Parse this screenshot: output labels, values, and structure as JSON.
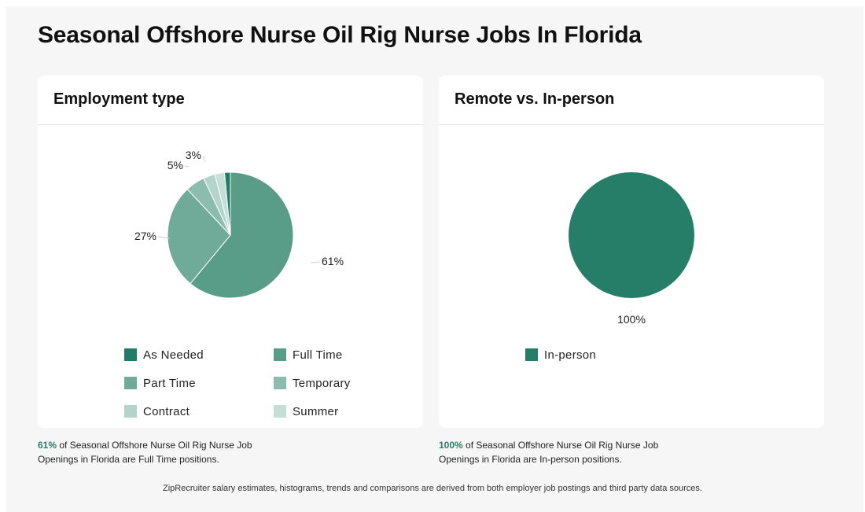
{
  "page": {
    "title": "Seasonal Offshore Nurse Oil Rig Nurse Jobs In Florida"
  },
  "cards": [
    {
      "title": "Employment type",
      "summary": {
        "pct": "61%",
        "text": " of Seasonal Offshore Nurse Oil Rig Nurse Job Openings in Florida are Full Time positions."
      }
    },
    {
      "title": "Remote vs. In-person",
      "summary": {
        "pct": "100%",
        "text": " of Seasonal Offshore Nurse Oil Rig Nurse Job Openings in Florida are In-person positions."
      }
    }
  ],
  "chart_data": [
    {
      "type": "pie",
      "title": "Employment type",
      "slices": [
        {
          "name": "As Needed",
          "value": 1.5,
          "label": "",
          "color": "#237d66"
        },
        {
          "name": "Full Time",
          "value": 61,
          "label": "61%",
          "color": "#599c87"
        },
        {
          "name": "Part Time",
          "value": 27,
          "label": "27%",
          "color": "#6fab98"
        },
        {
          "name": "Temporary",
          "value": 5,
          "label": "5%",
          "color": "#8cbcae"
        },
        {
          "name": "Contract",
          "value": 3,
          "label": "3%",
          "color": "#b3d4ca"
        },
        {
          "name": "Summer",
          "value": 2.5,
          "label": "",
          "color": "#c5dfd7"
        }
      ],
      "legend": [
        "As Needed",
        "Full Time",
        "Part Time",
        "Temporary",
        "Contract",
        "Summer"
      ]
    },
    {
      "type": "pie",
      "title": "Remote vs. In-person",
      "slices": [
        {
          "name": "In-person",
          "value": 100,
          "label": "100%",
          "color": "#267d68"
        }
      ],
      "legend": [
        "In-person"
      ]
    }
  ],
  "footer": "ZipRecruiter salary estimates, histograms, trends and comparisons are derived from both employer job postings and third party data sources."
}
